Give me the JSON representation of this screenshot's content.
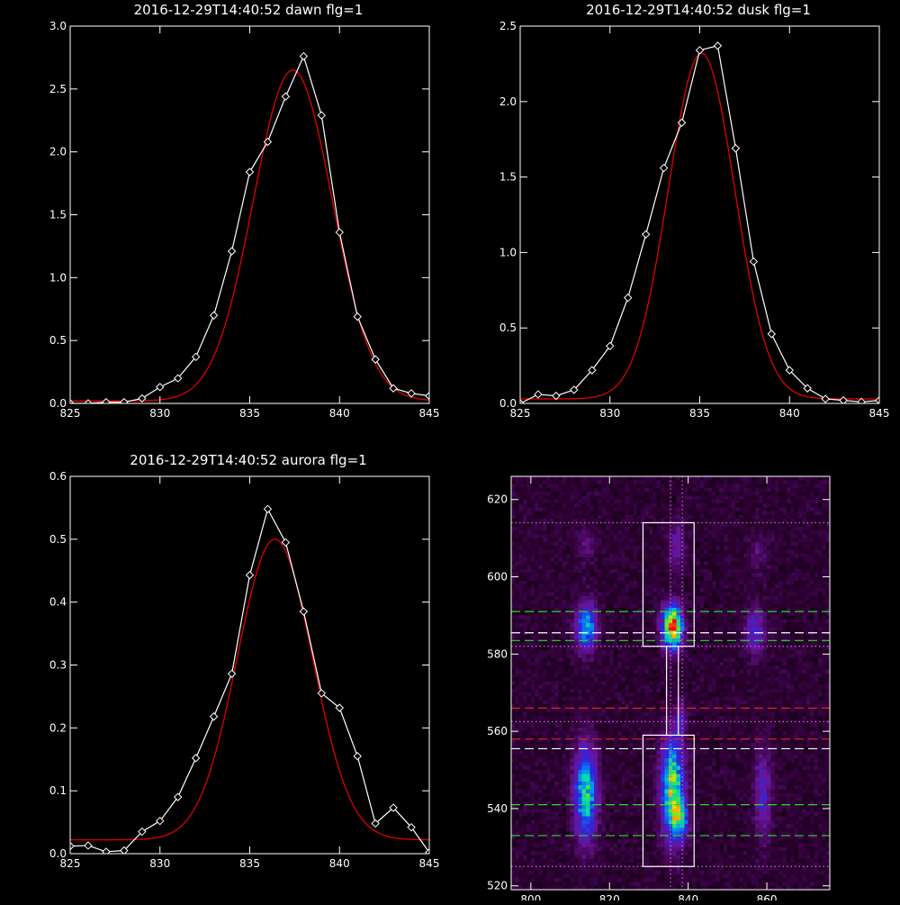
{
  "chart_data": [
    {
      "type": "line",
      "title": "2016-12-29T14:40:52 dawn flg=1",
      "xlim": [
        825,
        845
      ],
      "ylim": [
        0,
        3.0
      ],
      "x_ticks": [
        825,
        830,
        835,
        840,
        845
      ],
      "x_tick_labels": [
        "825",
        "830",
        "835",
        "840",
        "845"
      ],
      "y_ticks": [
        0,
        0.5,
        1.0,
        1.5,
        2.0,
        2.5,
        3.0
      ],
      "y_tick_labels": [
        "0.0",
        "0.5",
        "1.0",
        "1.5",
        "2.0",
        "2.5",
        "3.0"
      ],
      "colors": {
        "data": "#ffffff",
        "fit": "#e00000"
      },
      "series": [
        {
          "kind": "data",
          "markers": "diamond",
          "x": [
            825,
            826,
            827,
            828,
            829,
            830,
            831,
            832,
            833,
            834,
            835,
            836,
            837,
            838,
            839,
            840,
            841,
            842,
            843,
            844,
            845
          ],
          "y": [
            0.0,
            0.0,
            0.01,
            0.01,
            0.04,
            0.13,
            0.2,
            0.37,
            0.7,
            1.21,
            1.84,
            2.08,
            2.44,
            2.76,
            2.29,
            1.36,
            0.69,
            0.35,
            0.12,
            0.08,
            0.06
          ]
        },
        {
          "kind": "fit",
          "fit": "gaussian",
          "amplitude": 2.63,
          "center": 837.4,
          "sigma": 2.2,
          "baseline": 0.02
        }
      ]
    },
    {
      "type": "line",
      "title": "2016-12-29T14:40:52 dusk flg=1",
      "xlim": [
        825,
        845
      ],
      "ylim": [
        0,
        2.5
      ],
      "x_ticks": [
        825,
        830,
        835,
        840,
        845
      ],
      "x_tick_labels": [
        "825",
        "830",
        "835",
        "840",
        "845"
      ],
      "y_ticks": [
        0,
        0.5,
        1.0,
        1.5,
        2.0,
        2.5
      ],
      "y_tick_labels": [
        "0.0",
        "0.5",
        "1.0",
        "1.5",
        "2.0",
        "2.5"
      ],
      "colors": {
        "data": "#ffffff",
        "fit": "#e00000"
      },
      "series": [
        {
          "kind": "data",
          "markers": "diamond",
          "x": [
            825,
            826,
            827,
            828,
            829,
            830,
            831,
            832,
            833,
            834,
            835,
            836,
            837,
            838,
            839,
            840,
            841,
            842,
            843,
            844,
            845
          ],
          "y": [
            0.0,
            0.06,
            0.05,
            0.09,
            0.22,
            0.38,
            0.7,
            1.12,
            1.56,
            1.86,
            2.34,
            2.37,
            1.69,
            0.94,
            0.46,
            0.22,
            0.1,
            0.03,
            0.02,
            0.01,
            0.02
          ]
        },
        {
          "kind": "fit",
          "fit": "gaussian",
          "amplitude": 2.29,
          "center": 835.1,
          "sigma": 1.85,
          "baseline": 0.03
        }
      ]
    },
    {
      "type": "line",
      "title": "2016-12-29T14:40:52 aurora flg=1",
      "xlim": [
        825,
        845
      ],
      "ylim": [
        0,
        0.6
      ],
      "x_ticks": [
        825,
        830,
        835,
        840,
        845
      ],
      "x_tick_labels": [
        "825",
        "830",
        "835",
        "840",
        "845"
      ],
      "y_ticks": [
        0,
        0.1,
        0.2,
        0.3,
        0.4,
        0.5,
        0.6
      ],
      "y_tick_labels": [
        "0.0",
        "0.1",
        "0.2",
        "0.3",
        "0.4",
        "0.5",
        "0.6"
      ],
      "colors": {
        "data": "#ffffff",
        "fit": "#e00000"
      },
      "series": [
        {
          "kind": "data",
          "markers": "diamond",
          "x": [
            825,
            826,
            827,
            828,
            829,
            830,
            831,
            832,
            833,
            834,
            835,
            836,
            837,
            838,
            839,
            840,
            841,
            842,
            843,
            844,
            845
          ],
          "y": [
            0.012,
            0.013,
            0.003,
            0.005,
            0.035,
            0.052,
            0.09,
            0.152,
            0.218,
            0.286,
            0.443,
            0.548,
            0.495,
            0.385,
            0.255,
            0.232,
            0.155,
            0.048,
            0.073,
            0.042,
            0.002
          ]
        },
        {
          "kind": "fit",
          "fit": "gaussian",
          "amplitude": 0.478,
          "center": 836.4,
          "sigma": 2.1,
          "baseline": 0.022
        }
      ]
    },
    {
      "type": "heatmap",
      "title": "",
      "xlim": [
        795,
        876
      ],
      "ylim": [
        519,
        626
      ],
      "x_ticks": [
        800,
        820,
        840,
        860
      ],
      "x_tick_labels": [
        "800",
        "820",
        "840",
        "860"
      ],
      "y_ticks": [
        520,
        540,
        560,
        580,
        600,
        620
      ],
      "y_tick_labels": [
        "520",
        "540",
        "560",
        "580",
        "600",
        "620"
      ],
      "colormap": "rainbow-on-black",
      "sources": [
        {
          "x": 814,
          "y": 587,
          "sx": 1.8,
          "sy": 4.0,
          "amp": 0.5
        },
        {
          "x": 814,
          "y": 544,
          "sx": 1.9,
          "sy": 8.0,
          "amp": 0.58
        },
        {
          "x": 836,
          "y": 587,
          "sx": 1.7,
          "sy": 3.6,
          "amp": 0.98
        },
        {
          "x": 836,
          "y": 545,
          "sx": 1.9,
          "sy": 8.5,
          "amp": 0.7
        },
        {
          "x": 838,
          "y": 537,
          "sx": 1.4,
          "sy": 3.0,
          "amp": 0.45
        },
        {
          "x": 838,
          "y": 563,
          "sx": 0.9,
          "sy": 3.0,
          "amp": 0.22
        },
        {
          "x": 857,
          "y": 586,
          "sx": 1.8,
          "sy": 4.0,
          "amp": 0.25
        },
        {
          "x": 859,
          "y": 544,
          "sx": 1.5,
          "sy": 8.0,
          "amp": 0.22
        },
        {
          "x": 837,
          "y": 608,
          "sx": 1.4,
          "sy": 4.0,
          "amp": 0.18
        },
        {
          "x": 814,
          "y": 608,
          "sx": 1.6,
          "sy": 3.0,
          "amp": 0.1
        },
        {
          "x": 858,
          "y": 606,
          "sx": 1.6,
          "sy": 3.0,
          "amp": 0.1
        }
      ],
      "regions": [
        {
          "shape": "rect",
          "x0": 828.5,
          "x1": 841.5,
          "y0": 582,
          "y1": 614
        },
        {
          "shape": "rect",
          "x0": 828.5,
          "x1": 841.5,
          "y0": 525,
          "y1": 559
        },
        {
          "shape": "line",
          "orient": "v",
          "at": 834.5,
          "from": 559,
          "to": 582,
          "color": "#ffffff",
          "style": "solid"
        },
        {
          "shape": "line",
          "orient": "v",
          "at": 837.5,
          "from": 559,
          "to": 582,
          "color": "#ffffff",
          "style": "solid"
        }
      ],
      "guides": [
        {
          "orient": "h",
          "at": 614,
          "color": "#cc66cc",
          "style": "dotted"
        },
        {
          "orient": "h",
          "at": 591,
          "color": "#22dd22",
          "style": "dashed"
        },
        {
          "orient": "h",
          "at": 585.5,
          "color": "#ffffff",
          "style": "dashed"
        },
        {
          "orient": "h",
          "at": 583.5,
          "color": "#22dd22",
          "style": "dashed"
        },
        {
          "orient": "h",
          "at": 582,
          "color": "#cc66cc",
          "style": "dotted"
        },
        {
          "orient": "h",
          "at": 566,
          "color": "#dd2222",
          "style": "dashed"
        },
        {
          "orient": "h",
          "at": 562.5,
          "color": "#cc66cc",
          "style": "dotted"
        },
        {
          "orient": "h",
          "at": 558,
          "color": "#dd2222",
          "style": "dashed"
        },
        {
          "orient": "h",
          "at": 555.5,
          "color": "#ffffff",
          "style": "dashed"
        },
        {
          "orient": "h",
          "at": 541,
          "color": "#22dd22",
          "style": "dashed"
        },
        {
          "orient": "h",
          "at": 533,
          "color": "#22dd22",
          "style": "dashed"
        },
        {
          "orient": "h",
          "at": 525,
          "color": "#cc66cc",
          "style": "dotted"
        },
        {
          "orient": "v",
          "at": 835.5,
          "color": "#cc66cc",
          "style": "dotted"
        },
        {
          "orient": "v",
          "at": 838.5,
          "color": "#cc66cc",
          "style": "dotted"
        }
      ]
    }
  ]
}
